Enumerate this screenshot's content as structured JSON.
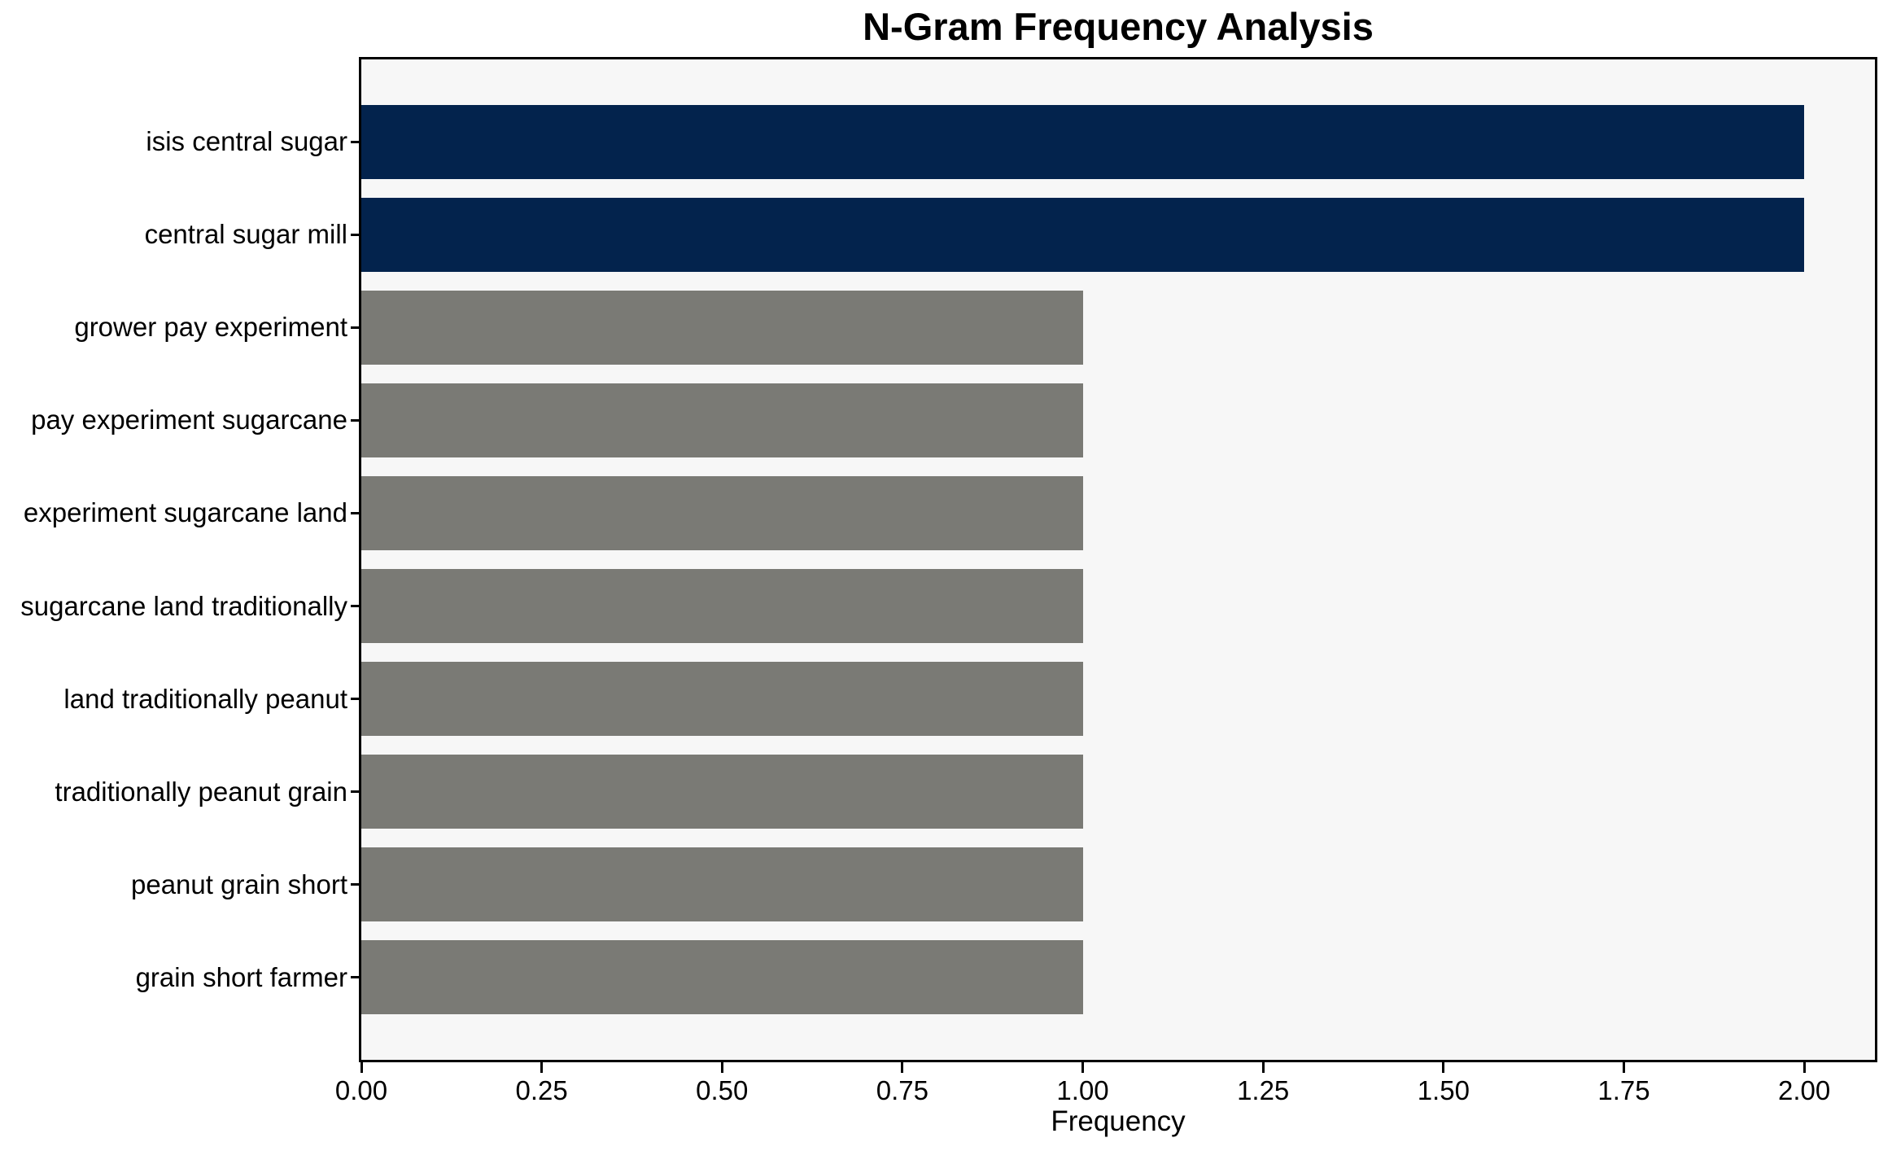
{
  "chart_data": {
    "type": "bar",
    "orientation": "horizontal",
    "title": "N-Gram Frequency Analysis",
    "xlabel": "Frequency",
    "ylabel": "",
    "categories": [
      "isis central sugar",
      "central sugar mill",
      "grower pay experiment",
      "pay experiment sugarcane",
      "experiment sugarcane land",
      "sugarcane land traditionally",
      "land traditionally peanut",
      "traditionally peanut grain",
      "peanut grain short",
      "grain short farmer"
    ],
    "values": [
      2,
      2,
      1,
      1,
      1,
      1,
      1,
      1,
      1,
      1
    ],
    "bar_colors": [
      "#03234d",
      "#03234d",
      "#7a7a75",
      "#7a7a75",
      "#7a7a75",
      "#7a7a75",
      "#7a7a75",
      "#7a7a75",
      "#7a7a75",
      "#7a7a75"
    ],
    "xlim": [
      0,
      2.098
    ],
    "xticks": {
      "values": [
        0,
        0.25,
        0.5,
        0.75,
        1,
        1.25,
        1.5,
        1.75,
        2
      ],
      "labels": [
        "0.00",
        "0.25",
        "0.50",
        "0.75",
        "1.00",
        "1.25",
        "1.50",
        "1.75",
        "2.00"
      ]
    },
    "colors": {
      "highlight": "#03234d",
      "default": "#7a7a75",
      "plot_background": "#f7f7f7",
      "figure_background": "#ffffff",
      "spine": "#000000",
      "text": "#000000"
    },
    "grid": false,
    "legend": null
  }
}
